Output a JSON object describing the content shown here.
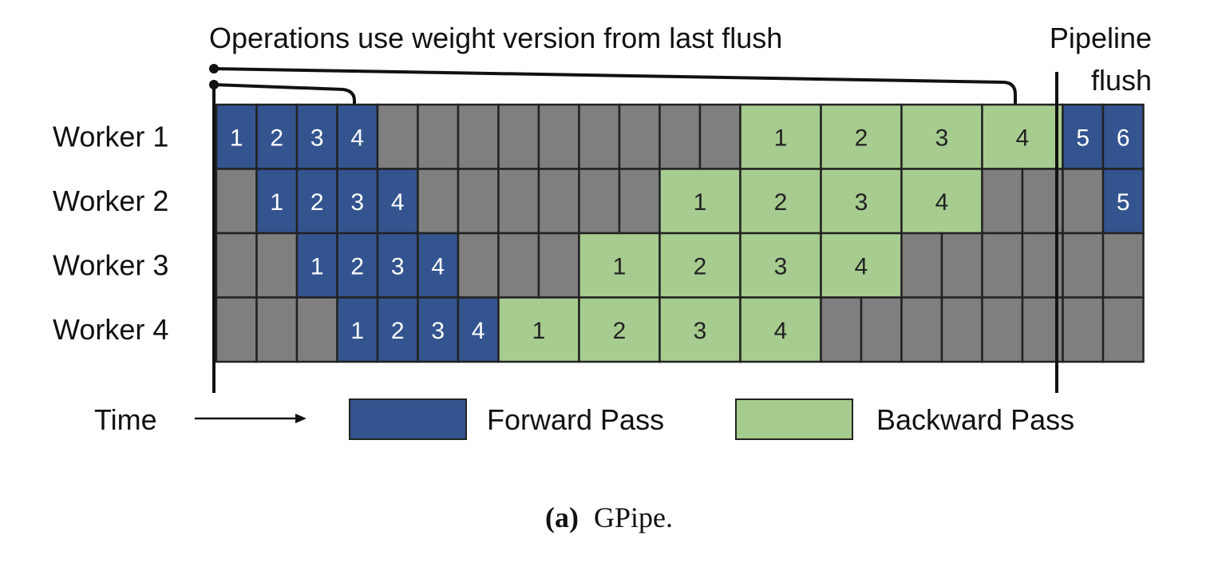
{
  "annotation": {
    "weight_note": "Operations use weight version from last flush",
    "flush_line1": "Pipeline",
    "flush_line2": "flush"
  },
  "time_label": "Time",
  "legend": {
    "forward": "Forward Pass",
    "backward": "Backward Pass"
  },
  "caption": {
    "prefix": "(a)",
    "name": "GPipe."
  },
  "colors": {
    "forward": "#33548f",
    "backward": "#a7cc8f",
    "idle": "#7f7f7f",
    "grid": "#222222"
  },
  "workers": [
    {
      "label": "Worker 1",
      "cells": [
        {
          "type": "forward",
          "text": "1"
        },
        {
          "type": "forward",
          "text": "2"
        },
        {
          "type": "forward",
          "text": "3"
        },
        {
          "type": "forward",
          "text": "4"
        },
        {
          "type": "idle",
          "text": ""
        },
        {
          "type": "idle",
          "text": ""
        },
        {
          "type": "idle",
          "text": ""
        },
        {
          "type": "idle",
          "text": ""
        },
        {
          "type": "idle",
          "text": ""
        },
        {
          "type": "idle",
          "text": ""
        },
        {
          "type": "idle",
          "text": ""
        },
        {
          "type": "idle",
          "text": ""
        },
        {
          "type": "idle",
          "text": ""
        },
        {
          "type": "backward",
          "text": "1",
          "span": 2
        },
        {
          "type": "backward",
          "text": "2",
          "span": 2
        },
        {
          "type": "backward",
          "text": "3",
          "span": 2
        },
        {
          "type": "backward",
          "text": "4",
          "span": 2
        },
        {
          "type": "forward",
          "text": "5"
        },
        {
          "type": "forward",
          "text": "6"
        }
      ]
    },
    {
      "label": "Worker 2",
      "cells": [
        {
          "type": "idle",
          "text": ""
        },
        {
          "type": "forward",
          "text": "1"
        },
        {
          "type": "forward",
          "text": "2"
        },
        {
          "type": "forward",
          "text": "3"
        },
        {
          "type": "forward",
          "text": "4"
        },
        {
          "type": "idle",
          "text": ""
        },
        {
          "type": "idle",
          "text": ""
        },
        {
          "type": "idle",
          "text": ""
        },
        {
          "type": "idle",
          "text": ""
        },
        {
          "type": "idle",
          "text": ""
        },
        {
          "type": "idle",
          "text": ""
        },
        {
          "type": "backward",
          "text": "1",
          "span": 2
        },
        {
          "type": "backward",
          "text": "2",
          "span": 2
        },
        {
          "type": "backward",
          "text": "3",
          "span": 2
        },
        {
          "type": "backward",
          "text": "4",
          "span": 2
        },
        {
          "type": "idle",
          "text": ""
        },
        {
          "type": "idle",
          "text": ""
        },
        {
          "type": "idle",
          "text": ""
        },
        {
          "type": "forward",
          "text": "5"
        }
      ]
    },
    {
      "label": "Worker 3",
      "cells": [
        {
          "type": "idle",
          "text": ""
        },
        {
          "type": "idle",
          "text": ""
        },
        {
          "type": "forward",
          "text": "1"
        },
        {
          "type": "forward",
          "text": "2"
        },
        {
          "type": "forward",
          "text": "3"
        },
        {
          "type": "forward",
          "text": "4"
        },
        {
          "type": "idle",
          "text": ""
        },
        {
          "type": "idle",
          "text": ""
        },
        {
          "type": "idle",
          "text": ""
        },
        {
          "type": "backward",
          "text": "1",
          "span": 2
        },
        {
          "type": "backward",
          "text": "2",
          "span": 2
        },
        {
          "type": "backward",
          "text": "3",
          "span": 2
        },
        {
          "type": "backward",
          "text": "4",
          "span": 2
        },
        {
          "type": "idle",
          "text": ""
        },
        {
          "type": "idle",
          "text": ""
        },
        {
          "type": "idle",
          "text": ""
        },
        {
          "type": "idle",
          "text": ""
        },
        {
          "type": "idle",
          "text": ""
        },
        {
          "type": "idle",
          "text": ""
        }
      ]
    },
    {
      "label": "Worker 4",
      "cells": [
        {
          "type": "idle",
          "text": ""
        },
        {
          "type": "idle",
          "text": ""
        },
        {
          "type": "idle",
          "text": ""
        },
        {
          "type": "forward",
          "text": "1"
        },
        {
          "type": "forward",
          "text": "2"
        },
        {
          "type": "forward",
          "text": "3"
        },
        {
          "type": "forward",
          "text": "4"
        },
        {
          "type": "backward",
          "text": "1",
          "span": 2
        },
        {
          "type": "backward",
          "text": "2",
          "span": 2
        },
        {
          "type": "backward",
          "text": "3",
          "span": 2
        },
        {
          "type": "backward",
          "text": "4",
          "span": 2
        },
        {
          "type": "idle",
          "text": ""
        },
        {
          "type": "idle",
          "text": ""
        },
        {
          "type": "idle",
          "text": ""
        },
        {
          "type": "idle",
          "text": ""
        },
        {
          "type": "idle",
          "text": ""
        },
        {
          "type": "idle",
          "text": ""
        },
        {
          "type": "idle",
          "text": ""
        },
        {
          "type": "idle",
          "text": ""
        }
      ]
    }
  ]
}
